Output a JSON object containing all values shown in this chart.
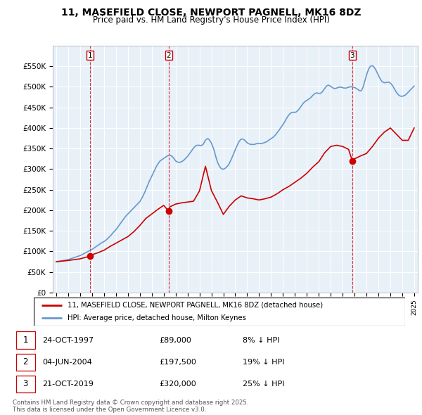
{
  "title": "11, MASEFIELD CLOSE, NEWPORT PAGNELL, MK16 8DZ",
  "subtitle": "Price paid vs. HM Land Registry's House Price Index (HPI)",
  "legend_line1": "11, MASEFIELD CLOSE, NEWPORT PAGNELL, MK16 8DZ (detached house)",
  "legend_line2": "HPI: Average price, detached house, Milton Keynes",
  "footer": "Contains HM Land Registry data © Crown copyright and database right 2025.\nThis data is licensed under the Open Government Licence v3.0.",
  "transactions": [
    {
      "num": 1,
      "date": "24-OCT-1997",
      "price": "£89,000",
      "pct": "8% ↓ HPI",
      "year": 1997.81
    },
    {
      "num": 2,
      "date": "04-JUN-2004",
      "price": "£197,500",
      "pct": "19% ↓ HPI",
      "year": 2004.42
    },
    {
      "num": 3,
      "date": "21-OCT-2019",
      "price": "£320,000",
      "pct": "25% ↓ HPI",
      "year": 2019.81
    }
  ],
  "ylim": [
    0,
    600000
  ],
  "yticks": [
    0,
    50000,
    100000,
    150000,
    200000,
    250000,
    300000,
    350000,
    400000,
    450000,
    500000,
    550000
  ],
  "ytick_labels": [
    "£0",
    "£50K",
    "£100K",
    "£150K",
    "£200K",
    "£250K",
    "£300K",
    "£350K",
    "£400K",
    "£450K",
    "£500K",
    "£550K"
  ],
  "xlim": [
    1994.7,
    2025.3
  ],
  "red_color": "#cc0000",
  "blue_color": "#6699cc",
  "chart_bg": "#e8f0f8",
  "hpi_x": [
    1995.0,
    1995.1,
    1995.2,
    1995.3,
    1995.4,
    1995.5,
    1995.6,
    1995.7,
    1995.8,
    1995.9,
    1996.0,
    1996.1,
    1996.2,
    1996.3,
    1996.4,
    1996.5,
    1996.6,
    1996.7,
    1996.8,
    1996.9,
    1997.0,
    1997.1,
    1997.2,
    1997.3,
    1997.4,
    1997.5,
    1997.6,
    1997.7,
    1997.8,
    1997.9,
    1998.0,
    1998.1,
    1998.2,
    1998.3,
    1998.4,
    1998.5,
    1998.6,
    1998.7,
    1998.8,
    1998.9,
    1999.0,
    1999.1,
    1999.2,
    1999.3,
    1999.4,
    1999.5,
    1999.6,
    1999.7,
    1999.8,
    1999.9,
    2000.0,
    2000.1,
    2000.2,
    2000.3,
    2000.4,
    2000.5,
    2000.6,
    2000.7,
    2000.8,
    2000.9,
    2001.0,
    2001.1,
    2001.2,
    2001.3,
    2001.4,
    2001.5,
    2001.6,
    2001.7,
    2001.8,
    2001.9,
    2002.0,
    2002.1,
    2002.2,
    2002.3,
    2002.4,
    2002.5,
    2002.6,
    2002.7,
    2002.8,
    2002.9,
    2003.0,
    2003.1,
    2003.2,
    2003.3,
    2003.4,
    2003.5,
    2003.6,
    2003.7,
    2003.8,
    2003.9,
    2004.0,
    2004.1,
    2004.2,
    2004.3,
    2004.4,
    2004.5,
    2004.6,
    2004.7,
    2004.8,
    2004.9,
    2005.0,
    2005.1,
    2005.2,
    2005.3,
    2005.4,
    2005.5,
    2005.6,
    2005.7,
    2005.8,
    2005.9,
    2006.0,
    2006.1,
    2006.2,
    2006.3,
    2006.4,
    2006.5,
    2006.6,
    2006.7,
    2006.8,
    2006.9,
    2007.0,
    2007.1,
    2007.2,
    2007.3,
    2007.4,
    2007.5,
    2007.6,
    2007.7,
    2007.8,
    2007.9,
    2008.0,
    2008.1,
    2008.2,
    2008.3,
    2008.4,
    2008.5,
    2008.6,
    2008.7,
    2008.8,
    2008.9,
    2009.0,
    2009.1,
    2009.2,
    2009.3,
    2009.4,
    2009.5,
    2009.6,
    2009.7,
    2009.8,
    2009.9,
    2010.0,
    2010.1,
    2010.2,
    2010.3,
    2010.4,
    2010.5,
    2010.6,
    2010.7,
    2010.8,
    2010.9,
    2011.0,
    2011.1,
    2011.2,
    2011.3,
    2011.4,
    2011.5,
    2011.6,
    2011.7,
    2011.8,
    2011.9,
    2012.0,
    2012.1,
    2012.2,
    2012.3,
    2012.4,
    2012.5,
    2012.6,
    2012.7,
    2012.8,
    2012.9,
    2013.0,
    2013.1,
    2013.2,
    2013.3,
    2013.4,
    2013.5,
    2013.6,
    2013.7,
    2013.8,
    2013.9,
    2014.0,
    2014.1,
    2014.2,
    2014.3,
    2014.4,
    2014.5,
    2014.6,
    2014.7,
    2014.8,
    2014.9,
    2015.0,
    2015.1,
    2015.2,
    2015.3,
    2015.4,
    2015.5,
    2015.6,
    2015.7,
    2015.8,
    2015.9,
    2016.0,
    2016.1,
    2016.2,
    2016.3,
    2016.4,
    2016.5,
    2016.6,
    2016.7,
    2016.8,
    2016.9,
    2017.0,
    2017.1,
    2017.2,
    2017.3,
    2017.4,
    2017.5,
    2017.6,
    2017.7,
    2017.8,
    2017.9,
    2018.0,
    2018.1,
    2018.2,
    2018.3,
    2018.4,
    2018.5,
    2018.6,
    2018.7,
    2018.8,
    2018.9,
    2019.0,
    2019.1,
    2019.2,
    2019.3,
    2019.4,
    2019.5,
    2019.6,
    2019.7,
    2019.8,
    2019.9,
    2020.0,
    2020.1,
    2020.2,
    2020.3,
    2020.4,
    2020.5,
    2020.6,
    2020.7,
    2020.8,
    2020.9,
    2021.0,
    2021.1,
    2021.2,
    2021.3,
    2021.4,
    2021.5,
    2021.6,
    2021.7,
    2021.8,
    2021.9,
    2022.0,
    2022.1,
    2022.2,
    2022.3,
    2022.4,
    2022.5,
    2022.6,
    2022.7,
    2022.8,
    2022.9,
    2023.0,
    2023.1,
    2023.2,
    2023.3,
    2023.4,
    2023.5,
    2023.6,
    2023.7,
    2023.8,
    2023.9,
    2024.0,
    2024.1,
    2024.2,
    2024.3,
    2024.4,
    2024.5,
    2024.6,
    2024.7,
    2024.8,
    2024.9,
    2025.0
  ],
  "hpi_y": [
    75000,
    75500,
    76000,
    76500,
    77000,
    77500,
    78000,
    78500,
    79000,
    79500,
    80000,
    81000,
    82000,
    83000,
    84000,
    85000,
    86000,
    87000,
    88000,
    89000,
    90000,
    91500,
    93000,
    94500,
    96000,
    97500,
    99000,
    100500,
    102000,
    103500,
    105000,
    107000,
    109000,
    111000,
    113000,
    115000,
    117000,
    119000,
    121000,
    122500,
    124000,
    126000,
    128500,
    131000,
    134000,
    137000,
    140000,
    143500,
    147000,
    150000,
    153000,
    157000,
    161000,
    165000,
    169000,
    173000,
    177000,
    181000,
    185000,
    188000,
    191000,
    194000,
    197000,
    200000,
    203000,
    206000,
    209000,
    212000,
    215000,
    218000,
    221000,
    226000,
    231000,
    237000,
    243000,
    250000,
    257000,
    264000,
    271000,
    277000,
    283000,
    289000,
    295000,
    301000,
    307000,
    312000,
    316000,
    320000,
    322000,
    324000,
    326000,
    328000,
    330000,
    332000,
    333000,
    334000,
    333000,
    331000,
    328000,
    324000,
    320000,
    318000,
    317000,
    316000,
    317000,
    318000,
    320000,
    322000,
    325000,
    328000,
    331000,
    335000,
    339000,
    343000,
    347000,
    351000,
    354000,
    357000,
    358000,
    358000,
    358000,
    357000,
    358000,
    360000,
    365000,
    370000,
    373000,
    374000,
    372000,
    368000,
    363000,
    356000,
    348000,
    338000,
    327000,
    318000,
    311000,
    306000,
    302000,
    300000,
    300000,
    301000,
    303000,
    306000,
    309000,
    314000,
    320000,
    326000,
    333000,
    340000,
    347000,
    354000,
    360000,
    366000,
    370000,
    373000,
    373000,
    372000,
    370000,
    367000,
    364000,
    362000,
    361000,
    360000,
    360000,
    360000,
    360000,
    361000,
    362000,
    362000,
    362000,
    362000,
    362000,
    363000,
    364000,
    365000,
    366000,
    368000,
    370000,
    372000,
    374000,
    376000,
    378000,
    381000,
    384000,
    388000,
    392000,
    396000,
    400000,
    404000,
    408000,
    413000,
    418000,
    423000,
    428000,
    432000,
    435000,
    437000,
    438000,
    438000,
    438000,
    439000,
    441000,
    444000,
    448000,
    452000,
    456000,
    460000,
    463000,
    465000,
    467000,
    469000,
    471000,
    473000,
    476000,
    479000,
    482000,
    484000,
    485000,
    485000,
    484000,
    484000,
    485000,
    488000,
    492000,
    496000,
    500000,
    503000,
    504000,
    503000,
    501000,
    499000,
    497000,
    496000,
    496000,
    497000,
    498000,
    499000,
    499000,
    499000,
    498000,
    497000,
    497000,
    497000,
    498000,
    499000,
    500000,
    500000,
    500000,
    499000,
    498000,
    497000,
    495000,
    493000,
    491000,
    490000,
    492000,
    498000,
    508000,
    518000,
    528000,
    537000,
    544000,
    549000,
    551000,
    551000,
    549000,
    545000,
    540000,
    534000,
    528000,
    522000,
    517000,
    513000,
    511000,
    510000,
    510000,
    511000,
    511000,
    511000,
    509000,
    506000,
    502000,
    497000,
    492000,
    487000,
    483000,
    480000,
    478000,
    477000,
    477000,
    478000,
    479000,
    481000,
    484000,
    487000,
    490000,
    493000,
    496000,
    499000,
    502000
  ],
  "price_x": [
    1995.0,
    1995.5,
    1996.0,
    1996.5,
    1997.0,
    1997.5,
    1997.81,
    1998.0,
    1998.5,
    1999.0,
    1999.5,
    2000.0,
    2000.5,
    2001.0,
    2001.5,
    2002.0,
    2002.5,
    2003.0,
    2003.5,
    2004.0,
    2004.42,
    2004.5,
    2005.0,
    2005.5,
    2006.0,
    2006.5,
    2007.0,
    2007.5,
    2008.0,
    2008.5,
    2009.0,
    2009.5,
    2010.0,
    2010.5,
    2011.0,
    2011.5,
    2012.0,
    2012.5,
    2013.0,
    2013.5,
    2014.0,
    2014.5,
    2015.0,
    2015.5,
    2016.0,
    2016.5,
    2017.0,
    2017.5,
    2018.0,
    2018.5,
    2019.0,
    2019.5,
    2019.81,
    2020.0,
    2020.5,
    2021.0,
    2021.5,
    2022.0,
    2022.5,
    2023.0,
    2023.5,
    2024.0,
    2024.5,
    2025.0
  ],
  "price_y": [
    75000,
    76500,
    78000,
    80000,
    82000,
    86000,
    89000,
    92000,
    97000,
    103000,
    112000,
    120000,
    128000,
    136000,
    148000,
    163000,
    180000,
    191000,
    202000,
    212000,
    197500,
    208000,
    215000,
    218000,
    220000,
    222000,
    247000,
    307000,
    248000,
    220000,
    190000,
    210000,
    225000,
    235000,
    230000,
    228000,
    225000,
    228000,
    232000,
    240000,
    250000,
    258000,
    268000,
    278000,
    290000,
    305000,
    318000,
    340000,
    355000,
    358000,
    355000,
    348000,
    320000,
    325000,
    332000,
    338000,
    355000,
    375000,
    390000,
    400000,
    385000,
    370000,
    370000,
    400000
  ]
}
